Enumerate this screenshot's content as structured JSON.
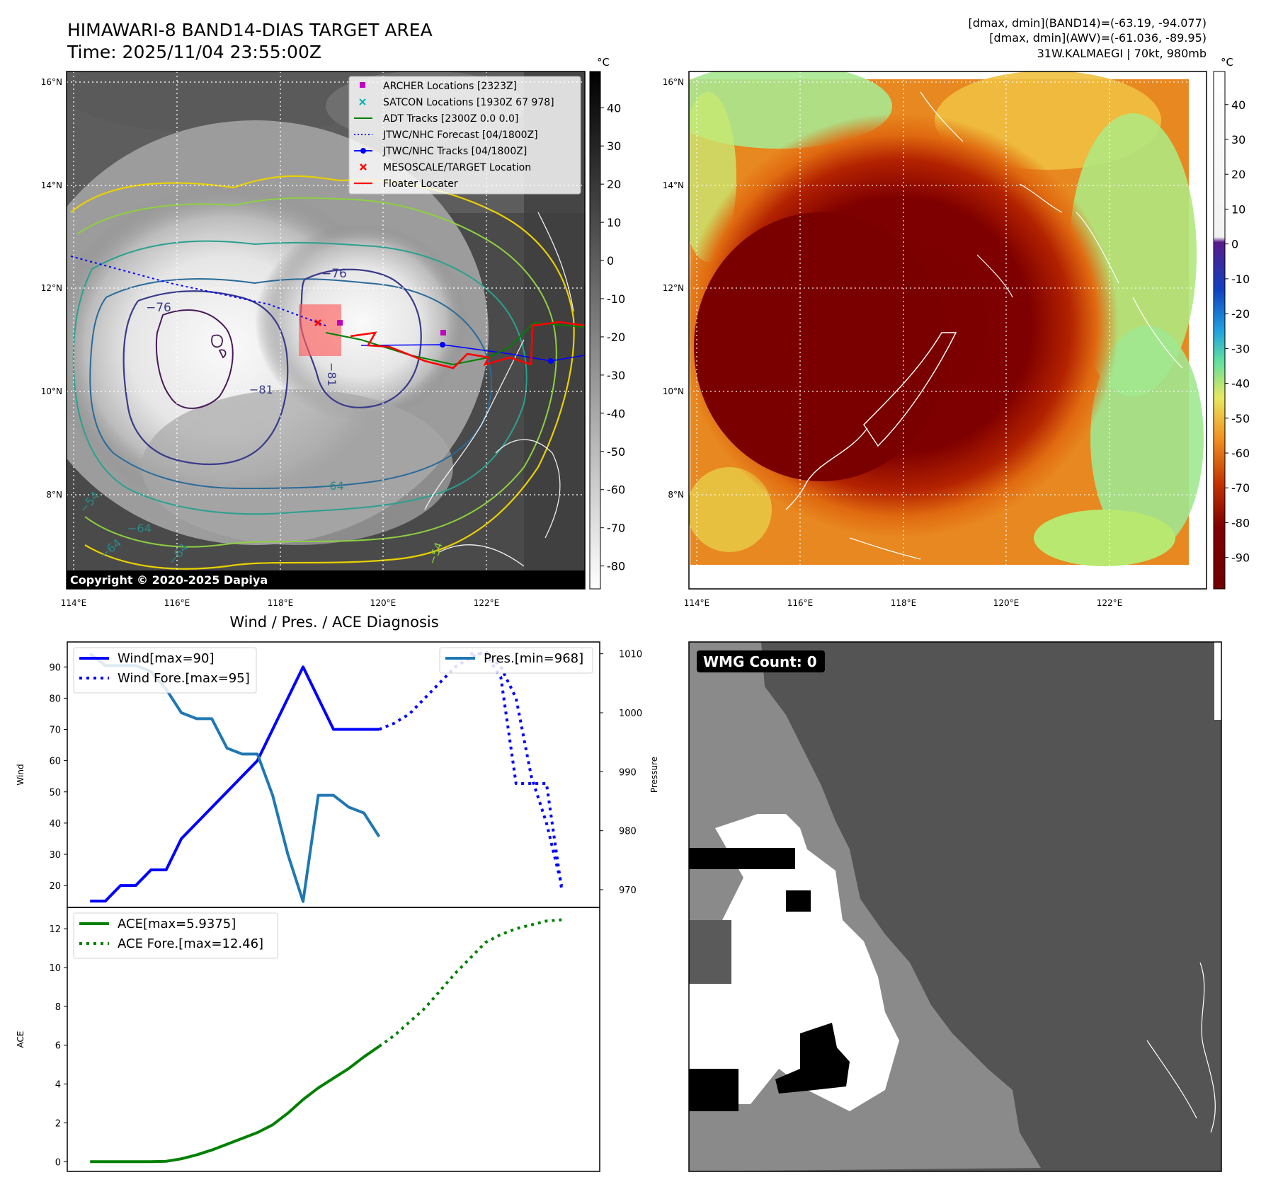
{
  "header": {
    "title": "HIMAWARI-8 BAND14-DIAS TARGET AREA",
    "time": "Time: 2025/11/04 23:55:00Z",
    "stats_line1": "[dmax, dmin](BAND14)=(-63.19, -94.077)",
    "stats_line2": "[dmax, dmin](AWV)=(-61.036, -89.95)",
    "storm_info": "31W.KALMAEGI | 70kt, 980mb"
  },
  "ir_panel": {
    "copyright": "Copyright © 2020-2025 Dapiya",
    "colorbar_unit": "°C",
    "colorbar_ticks": [
      40,
      30,
      20,
      10,
      0,
      -10,
      -20,
      -30,
      -40,
      -50,
      -60,
      -70,
      -80
    ],
    "lat_labels": [
      "16°N",
      "14°N",
      "12°N",
      "10°N",
      "8°N"
    ],
    "lon_labels": [
      "114°E",
      "116°E",
      "118°E",
      "120°E",
      "122°E"
    ],
    "contour_labels": [
      "−76",
      "−76",
      "−81",
      "−81",
      "−64",
      "−54",
      "−64",
      "−64",
      "−64",
      "−54"
    ],
    "legend": [
      {
        "label": "ARCHER Locations [2323Z]",
        "color": "#c000c0",
        "marker": "square"
      },
      {
        "label": "SATCON Locations [1930Z 67 978]",
        "color": "#00b0b0",
        "marker": "x"
      },
      {
        "label": "ADT Tracks [2300Z 0.0 0.0]",
        "color": "#008000",
        "marker": "line"
      },
      {
        "label": "JTWC/NHC Forecast [04/1800Z]",
        "color": "#0000ff",
        "marker": "dotted"
      },
      {
        "label": "JTWC/NHC Tracks [04/1800Z]",
        "color": "#0000ff",
        "marker": "line-dot"
      },
      {
        "label": "MESOSCALE/TARGET Location",
        "color": "#ff0000",
        "marker": "x"
      },
      {
        "label": "Floater Locater",
        "color": "#ff0000",
        "marker": "line"
      }
    ]
  },
  "awv_panel": {
    "colorbar_unit": "°C",
    "colorbar_ticks": [
      40,
      30,
      20,
      10,
      0,
      -10,
      -20,
      -30,
      -40,
      -50,
      -60,
      -70,
      -80,
      -90
    ],
    "lat_labels": [
      "16°N",
      "14°N",
      "12°N",
      "10°N",
      "8°N"
    ],
    "lon_labels": [
      "114°E",
      "116°E",
      "118°E",
      "120°E",
      "122°E"
    ]
  },
  "wmg_panel": {
    "label": "WMG Count: 0"
  },
  "chart_data": [
    {
      "type": "line",
      "title": "Wind / Pres. / ACE Diagnosis",
      "ylabel": "Wind",
      "y2label": "Pressure",
      "ylim": [
        13,
        98
      ],
      "y2lim": [
        967,
        1012
      ],
      "yticks": [
        20,
        30,
        40,
        50,
        60,
        70,
        80,
        90
      ],
      "y2ticks": [
        970,
        980,
        990,
        1000,
        1010
      ],
      "x": [
        0,
        1,
        2,
        3,
        4,
        5,
        6,
        7,
        8,
        9,
        10,
        11,
        12,
        13,
        14,
        15,
        16,
        17,
        18,
        19,
        20,
        21,
        22,
        23,
        24,
        25,
        26,
        27,
        28,
        29,
        30,
        31
      ],
      "legend": [
        {
          "label": "Wind[max=90]",
          "color": "#0000ff",
          "style": "solid"
        },
        {
          "label": "Wind Fore.[max=95]",
          "color": "#0000ff",
          "style": "dotted"
        }
      ],
      "legend2": [
        {
          "label": "Pres.[min=968]",
          "color": "#1f77b4",
          "style": "solid"
        }
      ],
      "series": [
        {
          "name": "Wind[max=90]",
          "x": [
            0,
            1,
            2,
            3,
            4,
            5,
            6,
            7,
            8,
            9,
            10,
            11,
            12,
            13,
            14,
            15,
            16,
            17,
            18,
            19
          ],
          "values": [
            15,
            15,
            20,
            20,
            25,
            25,
            35,
            40,
            45,
            50,
            55,
            60,
            70,
            80,
            90,
            80,
            70,
            70,
            70,
            70
          ]
        },
        {
          "name": "Wind Fore.[max=95]",
          "x": [
            19,
            20,
            21,
            22,
            23,
            24,
            25,
            26,
            27,
            28,
            29,
            30,
            31
          ],
          "values": [
            70,
            72,
            75,
            80,
            85,
            90,
            93,
            95,
            90,
            80,
            55,
            40,
            20
          ]
        },
        {
          "name": "Pres.[min=968]",
          "axis": "y2",
          "x": [
            0,
            1,
            2,
            3,
            4,
            5,
            6,
            7,
            8,
            9,
            10,
            11,
            12,
            13,
            14,
            15,
            16,
            17,
            18,
            19
          ],
          "values": [
            1010,
            1008,
            1008,
            1008,
            1007,
            1004,
            1000,
            999,
            999,
            994,
            993,
            993,
            986,
            976,
            968,
            986,
            986,
            984,
            983,
            979
          ]
        },
        {
          "name": "Pres. Fore.",
          "axis": "y2",
          "x": [
            25,
            26,
            27,
            28,
            29,
            30,
            31
          ],
          "values": [
            1010,
            1010,
            1006,
            988,
            988,
            988,
            970
          ]
        }
      ]
    },
    {
      "type": "line",
      "ylabel": "ACE",
      "ylim": [
        -0.5,
        13.1
      ],
      "yticks": [
        0,
        2,
        4,
        6,
        8,
        10,
        12
      ],
      "legend": [
        {
          "label": "ACE[max=5.9375]",
          "color": "#008000",
          "style": "solid"
        },
        {
          "label": "ACE Fore.[max=12.46]",
          "color": "#008000",
          "style": "dotted"
        }
      ],
      "series": [
        {
          "name": "ACE[max=5.9375]",
          "x": [
            0,
            1,
            2,
            3,
            4,
            5,
            6,
            7,
            8,
            9,
            10,
            11,
            12,
            13,
            14,
            15,
            16,
            17,
            18,
            19
          ],
          "values": [
            0,
            0,
            0,
            0,
            0,
            0.02,
            0.15,
            0.35,
            0.6,
            0.9,
            1.2,
            1.5,
            1.9,
            2.5,
            3.2,
            3.8,
            4.3,
            4.8,
            5.4,
            5.94
          ]
        },
        {
          "name": "ACE Fore.[max=12.46]",
          "x": [
            19,
            20,
            21,
            22,
            23,
            24,
            25,
            26,
            27,
            28,
            29,
            30,
            31
          ],
          "values": [
            5.94,
            6.5,
            7.2,
            7.9,
            8.8,
            9.7,
            10.5,
            11.3,
            11.7,
            12.0,
            12.2,
            12.4,
            12.46
          ]
        }
      ]
    }
  ]
}
